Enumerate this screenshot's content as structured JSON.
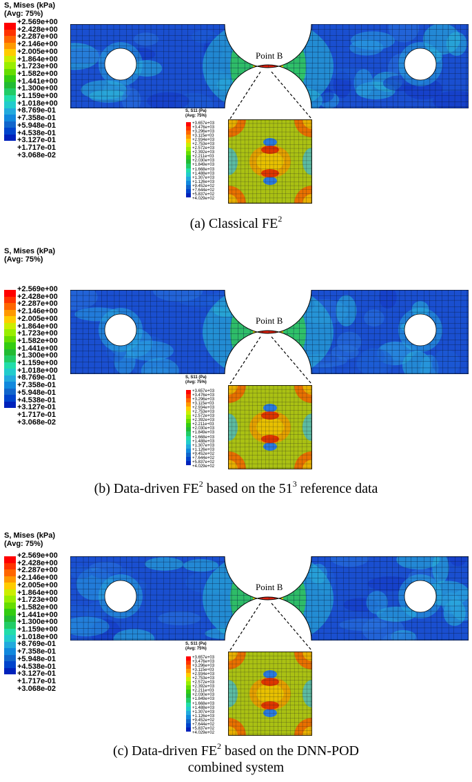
{
  "legend": {
    "title_line1": "S, Mises (kPa)",
    "title_line2": "(Avg: 75%)",
    "values": [
      "+2.569e+00",
      "+2.428e+00",
      "+2.287e+00",
      "+2.146e+00",
      "+2.005e+00",
      "+1.864e+00",
      "+1.723e+00",
      "+1.582e+00",
      "+1.441e+00",
      "+1.300e+00",
      "+1.159e+00",
      "+1.018e+00",
      "+8.769e-01",
      "+7.358e-01",
      "+5.948e-01",
      "+4.538e-01",
      "+3.127e-01",
      "+1.717e-01",
      "+3.068e-02"
    ],
    "colors": [
      "#ff0000",
      "#ff3300",
      "#ff6600",
      "#ff9900",
      "#ffcc00",
      "#ccee00",
      "#99ee00",
      "#66dd00",
      "#33cc11",
      "#22bb33",
      "#22cc66",
      "#22ddaa",
      "#22cccc",
      "#22aadd",
      "#1188dd",
      "#1166cc",
      "#0044cc",
      "#0022bb",
      "#0000bb"
    ]
  },
  "inset_legend": {
    "title_line1": "S, S11 (Pa)",
    "title_line2": "(Avg: 75%)",
    "values": [
      "+3.657e+03",
      "+3.476e+03",
      "+3.296e+03",
      "+3.115e+03",
      "+2.934e+03",
      "+2.753e+03",
      "+2.572e+03",
      "+2.392e+03",
      "+2.211e+03",
      "+2.030e+03",
      "+1.849e+03",
      "+1.668e+03",
      "+1.488e+03",
      "+1.307e+03",
      "+1.126e+03",
      "+9.452e+02",
      "+7.644e+02",
      "+5.837e+02",
      "+4.029e+02"
    ]
  },
  "point_label": "Point B",
  "captions": {
    "a": {
      "pre": "(a) Classical FE",
      "sup": "2",
      "post": ""
    },
    "b": {
      "pre": "(b) Data-driven FE",
      "sup": "2",
      "mid": " based on the 51",
      "sup2": "3",
      "post": " reference data"
    },
    "c": {
      "pre": "(c) Data-driven FE",
      "sup": "2",
      "post": " based on the DNN-POD",
      "line2": "combined system"
    }
  },
  "colors": {
    "field_blue": "#1a4fd0",
    "field_light": "#2aa8e0",
    "hot_red": "#e01010",
    "hot_yellow": "#e8d000"
  }
}
